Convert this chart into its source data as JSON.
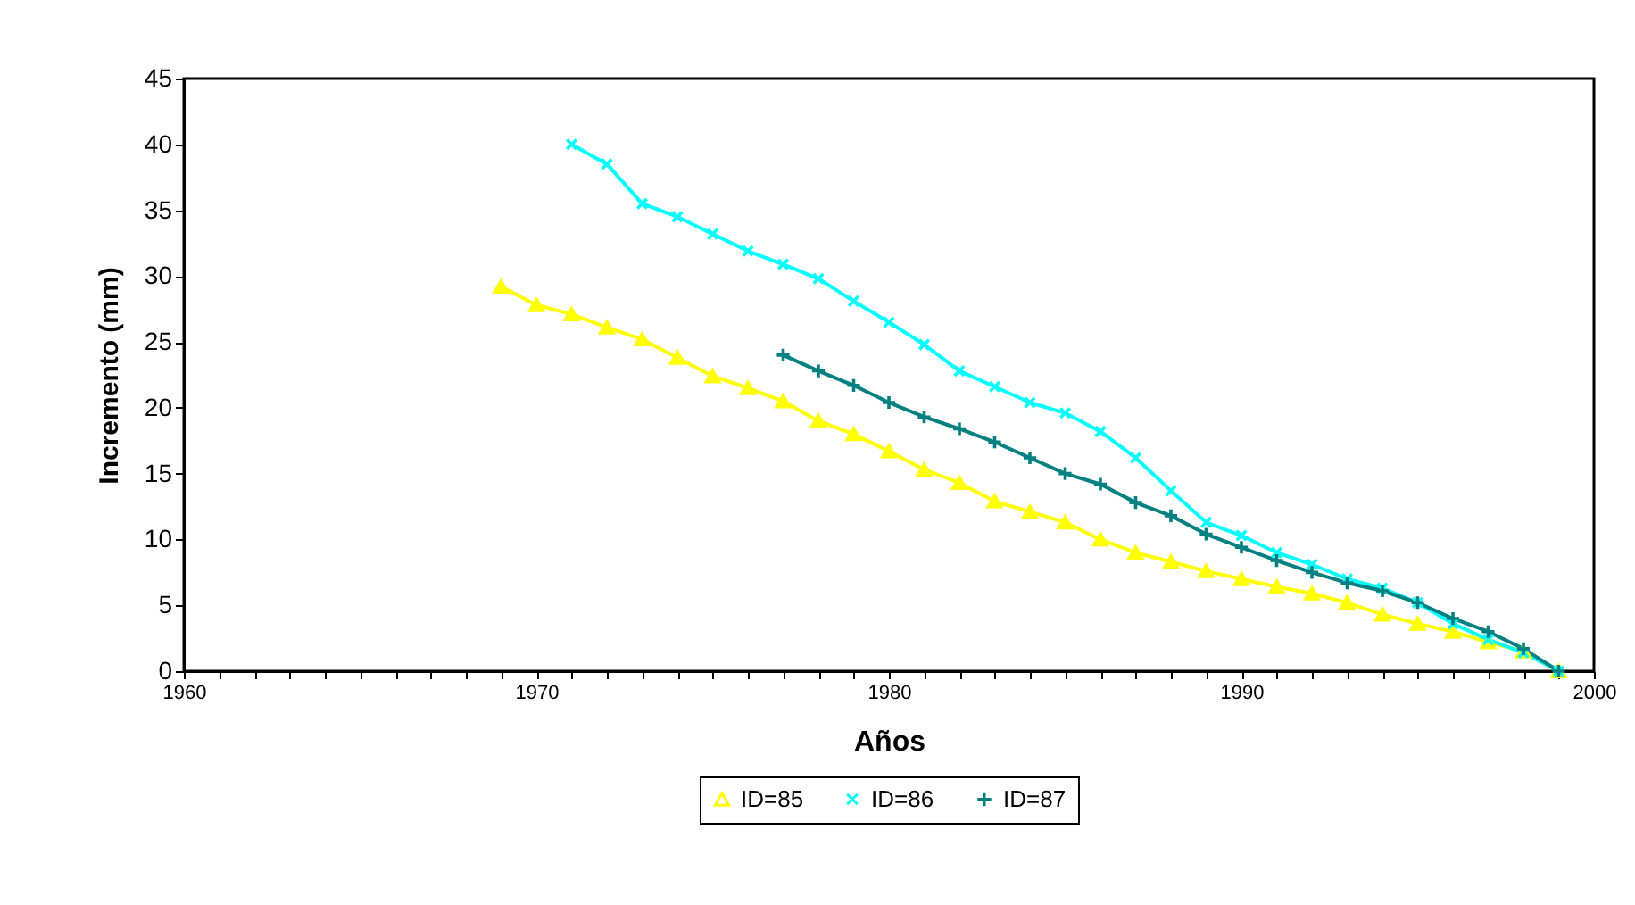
{
  "chart_data": {
    "type": "line",
    "xlabel": "Años",
    "ylabel": "Incremento (mm)",
    "xlim": [
      1960,
      2000
    ],
    "xticks": [
      1960,
      {
        "value": 1961,
        "label": null
      },
      {
        "value": 1962,
        "label": null
      },
      {
        "value": 1963,
        "label": null
      },
      {
        "value": 1964,
        "label": null
      },
      {
        "value": 1965,
        "label": null
      },
      {
        "value": 1966,
        "label": null
      },
      {
        "value": 1967,
        "label": null
      },
      {
        "value": 1968,
        "label": null
      },
      {
        "value": 1969,
        "label": null
      },
      1970,
      {
        "value": 1971,
        "label": null
      },
      {
        "value": 1972,
        "label": null
      },
      {
        "value": 1973,
        "label": null
      },
      {
        "value": 1974,
        "label": null
      },
      {
        "value": 1975,
        "label": null
      },
      {
        "value": 1976,
        "label": null
      },
      {
        "value": 1977,
        "label": null
      },
      {
        "value": 1978,
        "label": null
      },
      {
        "value": 1979,
        "label": null
      },
      1980,
      {
        "value": 1981,
        "label": null
      },
      {
        "value": 1982,
        "label": null
      },
      {
        "value": 1983,
        "label": null
      },
      {
        "value": 1984,
        "label": null
      },
      {
        "value": 1985,
        "label": null
      },
      {
        "value": 1986,
        "label": null
      },
      {
        "value": 1987,
        "label": null
      },
      {
        "value": 1988,
        "label": null
      },
      {
        "value": 1989,
        "label": null
      },
      1990,
      {
        "value": 1991,
        "label": null
      },
      {
        "value": 1992,
        "label": null
      },
      {
        "value": 1993,
        "label": null
      },
      {
        "value": 1994,
        "label": null
      },
      {
        "value": 1995,
        "label": null
      },
      {
        "value": 1996,
        "label": null
      },
      {
        "value": 1997,
        "label": null
      },
      {
        "value": 1998,
        "label": null
      },
      {
        "value": 1999,
        "label": null
      },
      2000
    ],
    "ylim": [
      0,
      45
    ],
    "yticks": [
      0,
      5,
      10,
      15,
      20,
      25,
      30,
      35,
      40,
      45
    ],
    "grid": false,
    "legend": "bottom",
    "line_style": "solid",
    "series": [
      {
        "name": "ID=85",
        "color": "#ffff00",
        "marker": "triangle",
        "x": [
          1969,
          1970,
          1971,
          1972,
          1973,
          1974,
          1975,
          1976,
          1977,
          1978,
          1979,
          1980,
          1981,
          1982,
          1983,
          1984,
          1985,
          1986,
          1987,
          1988,
          1989,
          1990,
          1991,
          1992,
          1993,
          1994,
          1995,
          1996,
          1997,
          1998,
          1999
        ],
        "values": [
          29.2,
          27.8,
          27.1,
          26.1,
          25.2,
          23.8,
          22.4,
          21.5,
          20.5,
          19.0,
          18.0,
          16.7,
          15.3,
          14.3,
          12.9,
          12.1,
          11.3,
          10.0,
          9.0,
          8.3,
          7.6,
          7.0,
          6.4,
          5.9,
          5.2,
          4.3,
          3.6,
          3.0,
          2.2,
          1.5,
          0
        ]
      },
      {
        "name": "ID=86",
        "color": "#00ffff",
        "marker": "cross",
        "x": [
          1971,
          1972,
          1973,
          1974,
          1975,
          1976,
          1977,
          1978,
          1979,
          1980,
          1981,
          1982,
          1983,
          1984,
          1985,
          1986,
          1987,
          1988,
          1989,
          1990,
          1991,
          1992,
          1993,
          1994,
          1995,
          1996,
          1997,
          1998,
          1999
        ],
        "values": [
          40.0,
          38.5,
          35.5,
          34.5,
          33.2,
          31.9,
          30.9,
          29.8,
          28.1,
          26.5,
          24.8,
          22.8,
          21.6,
          20.4,
          19.6,
          18.2,
          16.2,
          13.7,
          11.3,
          10.3,
          9.0,
          8.1,
          7.0,
          6.3,
          5.2,
          3.6,
          2.4,
          1.4,
          0
        ]
      },
      {
        "name": "ID=87",
        "color": "#008080",
        "marker": "plus",
        "x": [
          1977,
          1978,
          1979,
          1980,
          1981,
          1982,
          1983,
          1984,
          1985,
          1986,
          1987,
          1988,
          1989,
          1990,
          1991,
          1992,
          1993,
          1994,
          1995,
          1996,
          1997,
          1998,
          1999
        ],
        "values": [
          24.0,
          22.8,
          21.7,
          20.4,
          19.3,
          18.4,
          17.4,
          16.2,
          15.0,
          14.2,
          12.8,
          11.8,
          10.4,
          9.4,
          8.4,
          7.5,
          6.7,
          6.1,
          5.2,
          4.0,
          3.0,
          1.7,
          0
        ]
      }
    ]
  }
}
